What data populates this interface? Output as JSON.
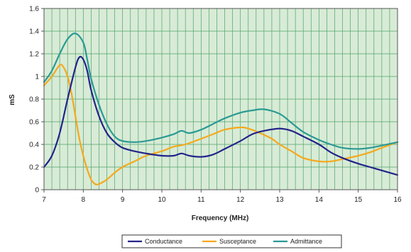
{
  "colors": {
    "plot_bg": "#d8ebd6",
    "grid": "#4fa46b",
    "axis": "#555555",
    "series": [
      "#23238a",
      "#f4a91c",
      "#2a9a93"
    ]
  },
  "chart_data": {
    "type": "line",
    "xlabel": "Frequency (MHz)",
    "ylabel": "mS",
    "xlim": [
      7,
      16
    ],
    "ylim": [
      0,
      1.6
    ],
    "x_ticks": [
      "7",
      "8",
      "9",
      "10",
      "11",
      "12",
      "13",
      "14",
      "15",
      "16"
    ],
    "y_ticks": [
      "0",
      "0.2",
      "0.4",
      "0.6",
      "0.8",
      "1",
      "1.2",
      "1.4",
      "1.6"
    ],
    "grid": true,
    "legend_position": "bottom",
    "series": [
      {
        "name": "Conductance",
        "points": [
          [
            7.0,
            0.2
          ],
          [
            7.2,
            0.3
          ],
          [
            7.4,
            0.5
          ],
          [
            7.6,
            0.8
          ],
          [
            7.8,
            1.08
          ],
          [
            7.9,
            1.17
          ],
          [
            8.0,
            1.15
          ],
          [
            8.1,
            1.05
          ],
          [
            8.2,
            0.88
          ],
          [
            8.4,
            0.65
          ],
          [
            8.6,
            0.5
          ],
          [
            8.8,
            0.42
          ],
          [
            9.0,
            0.37
          ],
          [
            9.3,
            0.34
          ],
          [
            9.6,
            0.32
          ],
          [
            10.0,
            0.3
          ],
          [
            10.3,
            0.3
          ],
          [
            10.5,
            0.32
          ],
          [
            10.7,
            0.3
          ],
          [
            11.0,
            0.29
          ],
          [
            11.3,
            0.31
          ],
          [
            11.6,
            0.36
          ],
          [
            12.0,
            0.43
          ],
          [
            12.3,
            0.49
          ],
          [
            12.6,
            0.52
          ],
          [
            13.0,
            0.54
          ],
          [
            13.3,
            0.52
          ],
          [
            13.6,
            0.47
          ],
          [
            14.0,
            0.4
          ],
          [
            14.3,
            0.33
          ],
          [
            14.6,
            0.28
          ],
          [
            15.0,
            0.23
          ],
          [
            15.3,
            0.2
          ],
          [
            15.6,
            0.17
          ],
          [
            16.0,
            0.13
          ]
        ]
      },
      {
        "name": "Susceptance",
        "points": [
          [
            7.0,
            0.92
          ],
          [
            7.2,
            1.0
          ],
          [
            7.4,
            1.1
          ],
          [
            7.5,
            1.08
          ],
          [
            7.6,
            1.0
          ],
          [
            7.7,
            0.85
          ],
          [
            7.8,
            0.65
          ],
          [
            7.9,
            0.45
          ],
          [
            8.0,
            0.3
          ],
          [
            8.1,
            0.18
          ],
          [
            8.2,
            0.09
          ],
          [
            8.3,
            0.05
          ],
          [
            8.4,
            0.05
          ],
          [
            8.6,
            0.09
          ],
          [
            8.8,
            0.15
          ],
          [
            9.0,
            0.2
          ],
          [
            9.3,
            0.25
          ],
          [
            9.6,
            0.3
          ],
          [
            10.0,
            0.34
          ],
          [
            10.3,
            0.38
          ],
          [
            10.6,
            0.4
          ],
          [
            11.0,
            0.45
          ],
          [
            11.3,
            0.49
          ],
          [
            11.6,
            0.53
          ],
          [
            12.0,
            0.55
          ],
          [
            12.2,
            0.54
          ],
          [
            12.5,
            0.5
          ],
          [
            12.8,
            0.45
          ],
          [
            13.0,
            0.4
          ],
          [
            13.3,
            0.34
          ],
          [
            13.6,
            0.28
          ],
          [
            14.0,
            0.25
          ],
          [
            14.3,
            0.25
          ],
          [
            14.6,
            0.27
          ],
          [
            15.0,
            0.3
          ],
          [
            15.3,
            0.33
          ],
          [
            15.6,
            0.37
          ],
          [
            16.0,
            0.42
          ]
        ]
      },
      {
        "name": "Admittance",
        "points": [
          [
            7.0,
            0.95
          ],
          [
            7.2,
            1.05
          ],
          [
            7.4,
            1.2
          ],
          [
            7.6,
            1.33
          ],
          [
            7.8,
            1.38
          ],
          [
            8.0,
            1.3
          ],
          [
            8.1,
            1.15
          ],
          [
            8.2,
            0.98
          ],
          [
            8.4,
            0.75
          ],
          [
            8.6,
            0.58
          ],
          [
            8.8,
            0.47
          ],
          [
            9.0,
            0.43
          ],
          [
            9.3,
            0.42
          ],
          [
            9.6,
            0.43
          ],
          [
            10.0,
            0.46
          ],
          [
            10.3,
            0.49
          ],
          [
            10.5,
            0.52
          ],
          [
            10.7,
            0.5
          ],
          [
            11.0,
            0.53
          ],
          [
            11.3,
            0.58
          ],
          [
            11.6,
            0.63
          ],
          [
            12.0,
            0.68
          ],
          [
            12.3,
            0.7
          ],
          [
            12.6,
            0.71
          ],
          [
            13.0,
            0.67
          ],
          [
            13.3,
            0.59
          ],
          [
            13.6,
            0.51
          ],
          [
            14.0,
            0.44
          ],
          [
            14.3,
            0.4
          ],
          [
            14.6,
            0.37
          ],
          [
            15.0,
            0.36
          ],
          [
            15.3,
            0.37
          ],
          [
            15.6,
            0.39
          ],
          [
            16.0,
            0.42
          ]
        ]
      }
    ]
  }
}
